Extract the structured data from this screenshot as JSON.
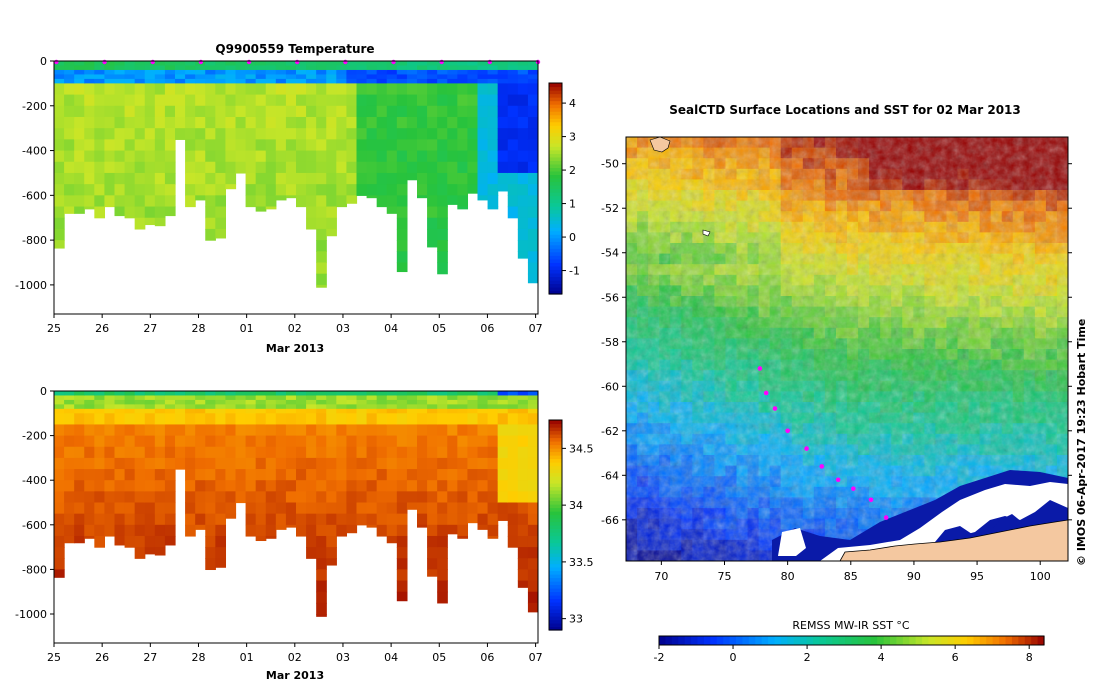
{
  "chart_data": [
    {
      "id": "temperature_section",
      "type": "heatmap",
      "title": "Q9900559  Temperature",
      "xlabel": "Mar 2013",
      "ylabel": "",
      "x_tick_labels": [
        "25",
        "26",
        "27",
        "28",
        "01",
        "02",
        "03",
        "04",
        "05",
        "06",
        "07"
      ],
      "x_range_days": [
        0,
        10.05
      ],
      "y_ticks": [
        0,
        -200,
        -400,
        -600,
        -800,
        -1000
      ],
      "y_tick_labels": [
        "0",
        "-200",
        "-400",
        "-600",
        "-800",
        "-1000"
      ],
      "ylim": [
        -1130,
        0
      ],
      "colorbar_ticks": [
        4,
        3,
        2,
        1,
        0,
        -1
      ],
      "colorbar_tick_labels": [
        "4",
        "3",
        "2",
        "1",
        "0",
        "-1"
      ],
      "colorbar_range": [
        -1.7,
        4.6
      ],
      "profile_count": 48,
      "profile_max_depths": [
        835,
        680,
        680,
        660,
        700,
        650,
        690,
        700,
        750,
        730,
        735,
        690,
        350,
        650,
        620,
        800,
        790,
        570,
        500,
        650,
        670,
        660,
        620,
        610,
        650,
        750,
        1010,
        780,
        650,
        635,
        600,
        610,
        650,
        680,
        940,
        530,
        610,
        830,
        950,
        640,
        660,
        590,
        620,
        660,
        580,
        700,
        880,
        990
      ]
    },
    {
      "id": "salinity_section",
      "type": "heatmap",
      "title": "",
      "xlabel": "Mar 2013",
      "ylabel": "",
      "x_tick_labels": [
        "25",
        "26",
        "27",
        "28",
        "01",
        "02",
        "03",
        "04",
        "05",
        "06",
        "07"
      ],
      "x_range_days": [
        0,
        10.05
      ],
      "y_ticks": [
        0,
        -200,
        -400,
        -600,
        -800,
        -1000
      ],
      "y_tick_labels": [
        "0",
        "-200",
        "-400",
        "-600",
        "-800",
        "-1000"
      ],
      "ylim": [
        -1130,
        0
      ],
      "colorbar_ticks": [
        34.5,
        34,
        33.5,
        33
      ],
      "colorbar_tick_labels": [
        "34.5",
        "34",
        "33.5",
        "33"
      ],
      "colorbar_range": [
        32.9,
        34.75
      ]
    },
    {
      "id": "sst_map",
      "type": "heatmap",
      "title": "SealCTD Surface Locations and SST for 02 Mar 2013",
      "x_ticks": [
        70,
        75,
        80,
        85,
        90,
        95,
        100
      ],
      "x_tick_labels": [
        "70",
        "75",
        "80",
        "85",
        "90",
        "95",
        "100"
      ],
      "xlim": [
        67.2,
        102.2
      ],
      "y_ticks": [
        -50,
        -52,
        -54,
        -56,
        -58,
        -60,
        -62,
        -64,
        -66
      ],
      "y_tick_labels": [
        "-50",
        "-52",
        "-54",
        "-56",
        "-58",
        "-60",
        "-62",
        "-64",
        "-66"
      ],
      "ylim": [
        -67.85,
        -48.8
      ],
      "colorbar_label": "REMSS MW-IR SST °C",
      "colorbar_ticks": [
        -2,
        0,
        2,
        4,
        6,
        8
      ],
      "colorbar_tick_labels": [
        "-2",
        "0",
        "2",
        "4",
        "6",
        "8"
      ],
      "colorbar_range": [
        -2,
        8.4
      ],
      "track_points": [
        {
          "lon": 77.8,
          "lat": -59.2
        },
        {
          "lon": 78.3,
          "lat": -60.3
        },
        {
          "lon": 79.0,
          "lat": -61.0
        },
        {
          "lon": 80.0,
          "lat": -62.0
        },
        {
          "lon": 81.5,
          "lat": -62.8
        },
        {
          "lon": 82.7,
          "lat": -63.6
        },
        {
          "lon": 84.0,
          "lat": -64.2
        },
        {
          "lon": 85.2,
          "lat": -64.6
        },
        {
          "lon": 86.6,
          "lat": -65.1
        },
        {
          "lon": 87.8,
          "lat": -65.9
        }
      ]
    }
  ],
  "footer": {
    "copyright": "© IMOS 06-Apr-2017 19:23 Hobart Time"
  }
}
